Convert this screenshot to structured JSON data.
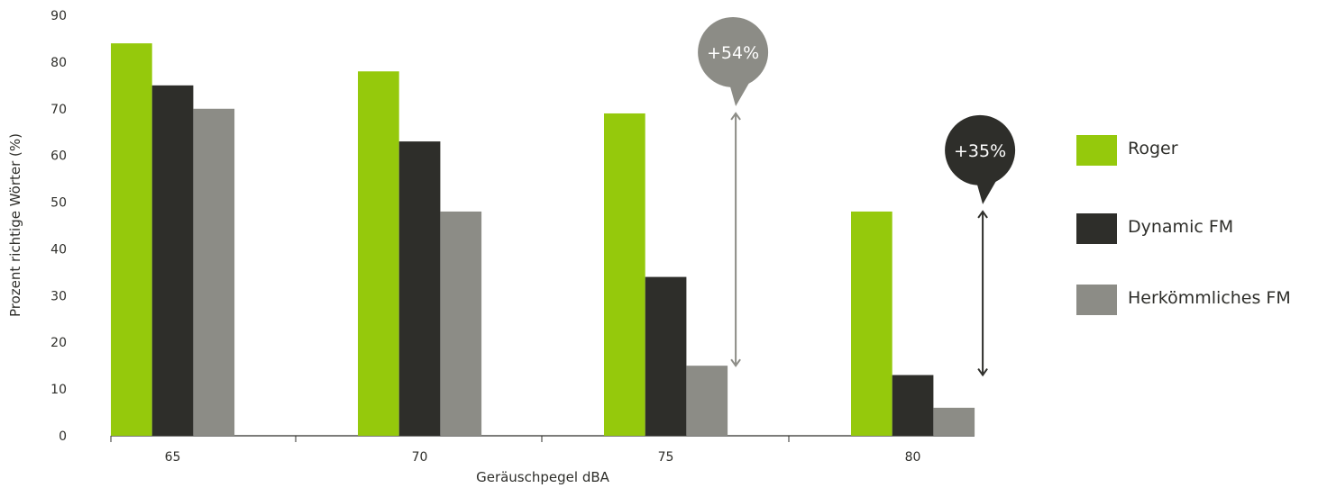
{
  "chart_data": {
    "type": "bar",
    "xlabel": "Geräuschpegel dBA",
    "ylabel": "Prozent richtige Wörter (%)",
    "ylim": [
      0,
      90
    ],
    "yticks": [
      "0",
      "10",
      "20",
      "30",
      "40",
      "50",
      "60",
      "70",
      "80",
      "90"
    ],
    "categories": [
      "65",
      "70",
      "75",
      "80"
    ],
    "series": [
      {
        "name": "Roger",
        "values": [
          84,
          78,
          69,
          48
        ],
        "color": "#95c90c"
      },
      {
        "name": "Dynamic FM",
        "values": [
          75,
          63,
          34,
          13
        ],
        "color": "#2e2e2a"
      },
      {
        "name": "Herkömmliches FM",
        "values": [
          70,
          48,
          15,
          6
        ],
        "color": "#8c8c86"
      }
    ],
    "grid": false,
    "legend_position": "right",
    "annotations": [
      {
        "label": "+54%",
        "category": "75",
        "from": 15,
        "to": 69,
        "color": "#8c8c86"
      },
      {
        "label": "+35%",
        "category": "80",
        "from": 13,
        "to": 48,
        "color": "#2e2e2a"
      }
    ]
  }
}
